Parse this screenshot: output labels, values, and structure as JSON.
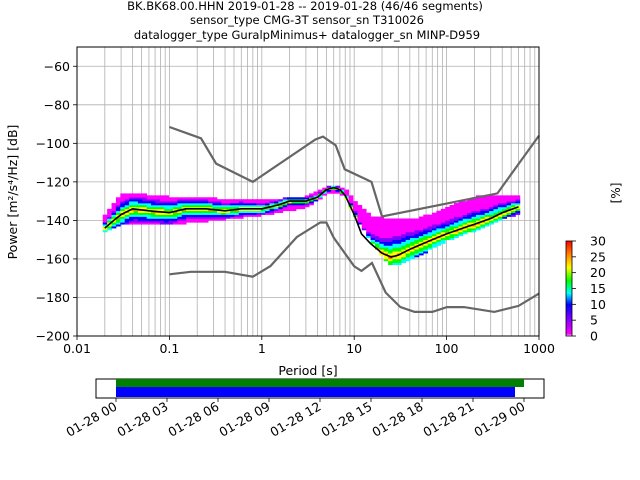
{
  "title": {
    "line1": "BK.BK68.00.HHN   2019-01-28 -- 2019-01-28  (46/46 segments)",
    "line2": "sensor_type CMG-3T sensor_sn T310026",
    "line3": "datalogger_type GuralpMinimus+ datalogger_sn MINP-D959"
  },
  "colorbar": {
    "label": "[%]",
    "ticks": [
      "0",
      "5",
      "10",
      "15",
      "20",
      "25",
      "30"
    ],
    "range": [
      0,
      30
    ]
  },
  "timeline": {
    "ticks": [
      "01-28 00",
      "01-28 03",
      "01-28 06",
      "01-28 09",
      "01-28 12",
      "01-28 15",
      "01-28 18",
      "01-28 21",
      "01-29 00"
    ],
    "colors": {
      "data_coverage": "#008000",
      "psd_coverage": "#0000ff"
    }
  },
  "chart_data": {
    "type": "line",
    "title": "BK.BK68.00.HHN   2019-01-28 -- 2019-01-28  (46/46 segments)",
    "xlabel": "Period [s]",
    "ylabel": "Power [m²/s⁴/Hz] [dB]",
    "xscale": "log",
    "xlim": [
      0.01,
      1000
    ],
    "ylim": [
      -200,
      -50
    ],
    "xticks": [
      "0.01",
      "0.1",
      "1",
      "10",
      "100",
      "1000"
    ],
    "yticks": [
      "−200",
      "−180",
      "−160",
      "−140",
      "−120",
      "−100",
      "−80",
      "−60"
    ],
    "grid": true,
    "series": [
      {
        "role": "nhnm",
        "color": "#666666",
        "x": [
          0.1,
          0.22,
          0.32,
          0.8,
          3.8,
          4.6,
          6.3,
          7.9,
          15.4,
          20,
          354.8,
          10000
        ],
        "y": [
          -91.5,
          -97.4,
          -110.5,
          -120,
          -98,
          -96.5,
          -101,
          -113.5,
          -120,
          -138,
          -126,
          -96
        ]
      },
      {
        "role": "nlnm",
        "color": "#666666",
        "x": [
          0.1,
          0.17,
          0.4,
          0.8,
          1.24,
          2.4,
          4.3,
          5,
          6,
          10,
          12,
          15.6,
          21.9,
          31.6,
          45,
          70,
          101,
          154,
          328,
          600,
          1000
        ],
        "y": [
          -168,
          -166.7,
          -166.7,
          -169.2,
          -163.7,
          -148.6,
          -141.1,
          -141.1,
          -149,
          -163.8,
          -166.2,
          -162.1,
          -177.5,
          -185,
          -187.5,
          -187.5,
          -185,
          -185,
          -187.5,
          -184.4,
          -178
        ]
      },
      {
        "role": "mean",
        "color": "#000000",
        "x": [
          0.02,
          0.025,
          0.03,
          0.04,
          0.06,
          0.1,
          0.15,
          0.25,
          0.4,
          0.6,
          1,
          1.5,
          2,
          3,
          4,
          5,
          6,
          7,
          8,
          10,
          12,
          15,
          20,
          25,
          30,
          40,
          50,
          70,
          100,
          150,
          200,
          300,
          400,
          600
        ],
        "y": [
          -144,
          -140,
          -137,
          -134,
          -135,
          -136,
          -134,
          -134,
          -135,
          -134,
          -134,
          -132,
          -130,
          -130,
          -128,
          -124,
          -123,
          -124,
          -127,
          -137,
          -147,
          -152,
          -157,
          -159,
          -158,
          -155,
          -153,
          -150,
          -147,
          -144,
          -142,
          -139,
          -136,
          -133
        ]
      },
      {
        "role": "ppsd-band-upper",
        "x": [
          0.02,
          0.03,
          0.1,
          1,
          3,
          5,
          6,
          8,
          10,
          15,
          20,
          50,
          100,
          200,
          600
        ],
        "y": [
          -138,
          -126,
          -128,
          -130,
          -128,
          -123,
          -122,
          -124,
          -130,
          -138,
          -139,
          -139,
          -134,
          -128,
          -127
        ]
      },
      {
        "role": "ppsd-band-lower",
        "x": [
          0.02,
          0.03,
          0.1,
          1,
          3,
          5,
          6,
          8,
          10,
          15,
          20,
          25,
          30,
          50,
          100,
          200,
          600
        ],
        "y": [
          -146,
          -142,
          -142,
          -137,
          -133,
          -126,
          -125,
          -127,
          -137,
          -150,
          -158,
          -163,
          -163,
          -158,
          -150,
          -145,
          -136
        ]
      }
    ]
  }
}
